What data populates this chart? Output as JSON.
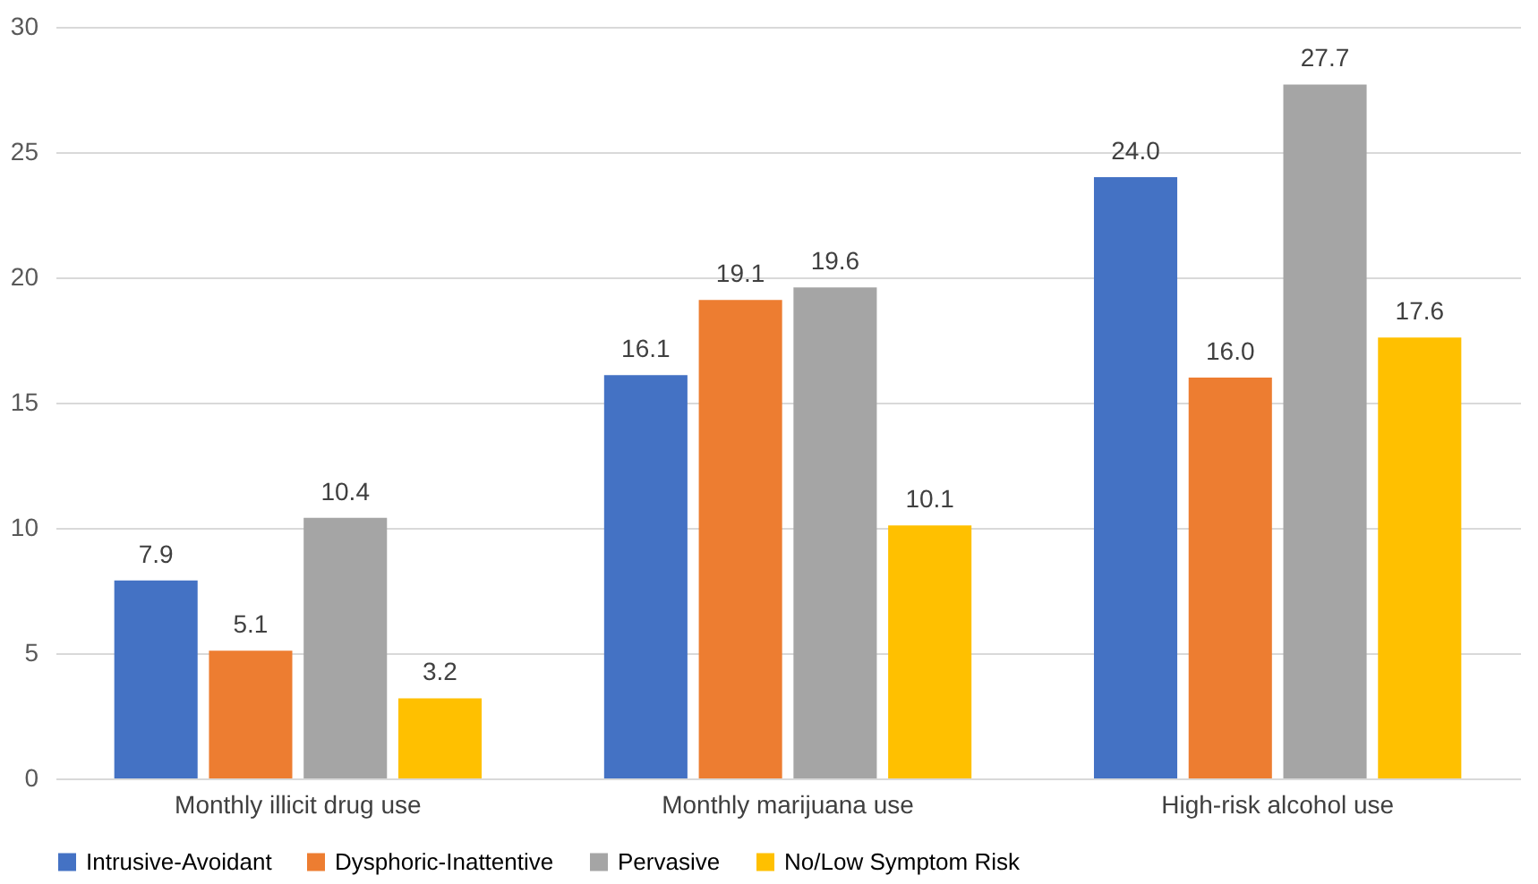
{
  "chart_data": {
    "type": "bar",
    "categories": [
      "Monthly illicit drug use",
      "Monthly marijuana use",
      "High-risk alcohol use"
    ],
    "series": [
      {
        "name": "Intrusive-Avoidant",
        "color": "#4472c4",
        "values": [
          7.9,
          16.1,
          24.0
        ],
        "value_labels": [
          "7.9",
          "16.1",
          "24.0"
        ]
      },
      {
        "name": "Dysphoric-Inattentive",
        "color": "#ed7d31",
        "values": [
          5.1,
          19.1,
          16.0
        ],
        "value_labels": [
          "5.1",
          "19.1",
          "16.0"
        ]
      },
      {
        "name": "Pervasive",
        "color": "#a5a5a5",
        "values": [
          10.4,
          19.6,
          27.7
        ],
        "value_labels": [
          "10.4",
          "19.6",
          "27.7"
        ]
      },
      {
        "name": "No/Low Symptom Risk",
        "color": "#ffc000",
        "values": [
          3.2,
          10.1,
          17.6
        ],
        "value_labels": [
          "3.2",
          "10.1",
          "17.6"
        ]
      }
    ],
    "ylim": [
      0,
      30
    ],
    "yticks": [
      0,
      5,
      10,
      15,
      20,
      25,
      30
    ],
    "grid": "y",
    "legend": "bottom"
  }
}
